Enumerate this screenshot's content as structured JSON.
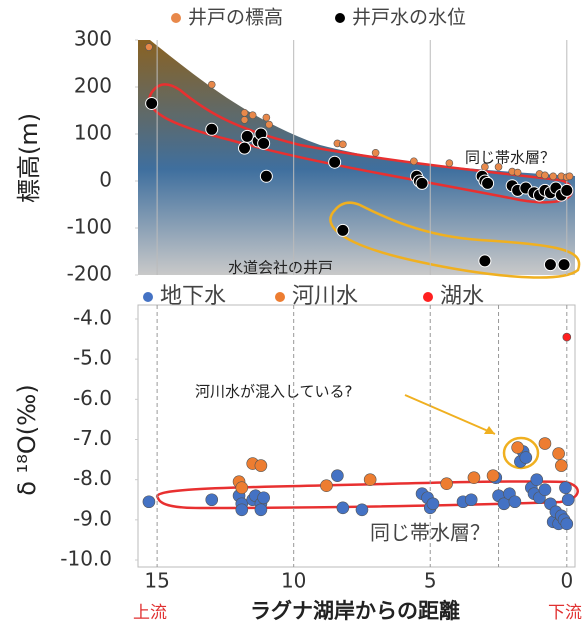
{
  "chart_data": [
    {
      "type": "scatter",
      "ylabel": "標高(m)",
      "xlim": [
        15.7,
        -0.3
      ],
      "xticks": [
        15,
        10,
        5,
        0
      ],
      "ylim": [
        300,
        -200
      ],
      "yticks": [
        300,
        200,
        100,
        0,
        -100,
        -200
      ],
      "series": [
        {
          "name": "井戸の標高",
          "color": "#e8884a",
          "x": [
            15.3,
            13,
            11.8,
            11.8,
            11.5,
            11,
            10.9,
            8.4,
            8.2,
            7,
            5.6,
            4.3,
            3,
            2.5,
            2,
            1.8,
            1,
            0.8,
            0.5,
            0.2,
            0,
            -0.1
          ],
          "values": [
            285,
            205,
            145,
            130,
            140,
            135,
            120,
            80,
            78,
            60,
            42,
            38,
            30,
            30,
            20,
            18,
            15,
            12,
            10,
            10,
            8,
            10
          ]
        },
        {
          "name": "井戸水の水位",
          "color": "#000000",
          "x": [
            15.2,
            13,
            11.8,
            11.7,
            11.3,
            11.2,
            11.1,
            11,
            8.5,
            8.2,
            5.5,
            5.4,
            5.3,
            3.1,
            3,
            2.9,
            3,
            2,
            1.8,
            1.5,
            1.2,
            1,
            0.8,
            0.6,
            0.4,
            0.2,
            0,
            0.6,
            0.1
          ],
          "values": [
            165,
            110,
            70,
            95,
            85,
            100,
            80,
            10,
            40,
            -105,
            10,
            0,
            -5,
            10,
            0,
            -5,
            -170,
            -10,
            -20,
            -15,
            -25,
            -30,
            -20,
            -25,
            -15,
            -30,
            -20,
            -178,
            -178
          ]
        }
      ],
      "annotations": [
        "同じ帯水層？",
        "水道会社の井戸"
      ]
    },
    {
      "type": "scatter",
      "ylabel": "δ ¹⁸O(‰)",
      "xlabel": "ラグナ湖岸からの距離",
      "upstream": "上流",
      "downstream": "下流",
      "xlim": [
        15.7,
        -0.3
      ],
      "xticks": [
        15,
        10,
        5,
        0
      ],
      "vlines": [
        2.5
      ],
      "ylim": [
        -4,
        -10
      ],
      "yticks": [
        {
          "value": -4,
          "label": "-4.0"
        },
        {
          "value": -5,
          "label": "-5.0"
        },
        {
          "value": -6,
          "label": "-6.0"
        },
        {
          "value": -7,
          "label": "-7.0"
        },
        {
          "value": -8,
          "label": "-8.0"
        },
        {
          "value": -9,
          "label": "-9.0"
        },
        {
          "value": -10,
          "label": "-10.0"
        }
      ],
      "series": [
        {
          "name": "地下水",
          "color": "#4472c4",
          "x": [
            15.3,
            13,
            12,
            11.9,
            11.9,
            11.5,
            11.4,
            11.2,
            11.2,
            11.1,
            8.4,
            8.2,
            7.5,
            5.3,
            5.1,
            5,
            4.9,
            3.8,
            3.5,
            2.6,
            2.5,
            2.3,
            2.1,
            1.9,
            1.7,
            1.6,
            1.5,
            1.3,
            1.2,
            1.1,
            1,
            0.8,
            0.6,
            0.5,
            0.4,
            0.3,
            0.2,
            0.1,
            0,
            0.05,
            -0.05
          ],
          "values": [
            -8.55,
            -8.5,
            -8.4,
            -8.6,
            -8.75,
            -8.5,
            -8.4,
            -8.6,
            -8.75,
            -8.45,
            -7.9,
            -8.7,
            -8.75,
            -8.35,
            -8.45,
            -8.7,
            -8.6,
            -8.55,
            -8.5,
            -7.95,
            -8.4,
            -8.6,
            -8.35,
            -8.55,
            -7.55,
            -7.3,
            -7.45,
            -8.2,
            -8.35,
            -8,
            -8.45,
            -8.25,
            -8.6,
            -9.05,
            -8.8,
            -9.1,
            -8.9,
            -9,
            -9.1,
            -8.2,
            -8.5
          ]
        },
        {
          "name": "河川水",
          "color": "#ed7d31",
          "x": [
            12,
            11.9,
            11.5,
            11.2,
            8.8,
            7.2,
            4.4,
            3.4,
            2.7,
            1.8,
            0.8,
            0.3,
            0.2
          ],
          "values": [
            -8.05,
            -8.2,
            -7.6,
            -7.65,
            -8.15,
            -8,
            -8.1,
            -7.95,
            -7.9,
            -7.2,
            -7.1,
            -7.35,
            -7.65
          ]
        },
        {
          "name": "湖水",
          "color": "#ff2020",
          "x": [
            0
          ],
          "values": [
            -4.45
          ]
        }
      ],
      "annotations": [
        "河川水が混入している?",
        "同じ帯水層？"
      ]
    }
  ]
}
